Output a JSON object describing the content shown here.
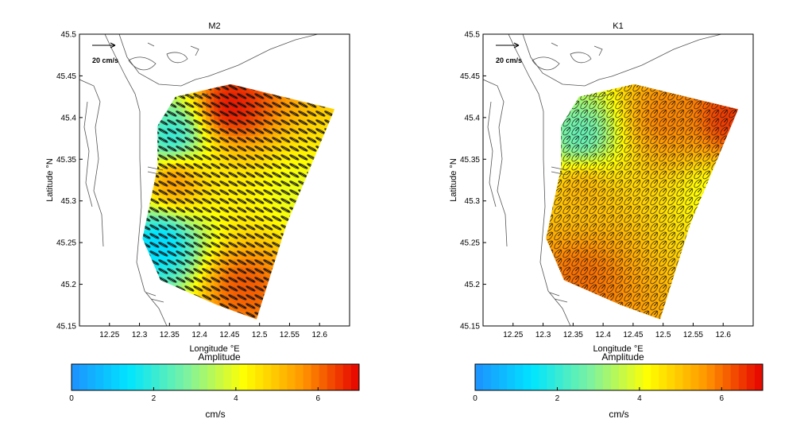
{
  "chart_data": [
    {
      "type": "heatmap",
      "title": "M2",
      "xlabel": "Longitude °E",
      "ylabel": "Latitude °N",
      "xlim": [
        12.2,
        12.65
      ],
      "ylim": [
        45.15,
        45.5
      ],
      "x_ticks": [
        "12.25",
        "12.3",
        "12.35",
        "12.4",
        "12.45",
        "12.5",
        "12.55",
        "12.6"
      ],
      "y_ticks": [
        "45.5",
        "45.45",
        "45.4",
        "45.35",
        "45.3",
        "45.25",
        "45.2",
        "45.15"
      ],
      "reference_vector_label": "20 cm/s",
      "colorbar": {
        "title": "Amplitude",
        "unit": "cm/s",
        "range": [
          0,
          7
        ],
        "ticks": [
          "0",
          "2",
          "4",
          "6"
        ],
        "colormap": [
          "#1e90ff",
          "#00e5ff",
          "#7cf2a0",
          "#ffff00",
          "#ff9900",
          "#e60000"
        ]
      },
      "grid": false,
      "hotspots": [
        {
          "lon": 12.45,
          "lat": 45.415,
          "amplitude": 6.8
        },
        {
          "lon": 12.355,
          "lat": 45.325,
          "amplitude": 5.5
        },
        {
          "lon": 12.47,
          "lat": 45.2,
          "amplitude": 6.2
        },
        {
          "lon": 12.33,
          "lat": 45.25,
          "amplitude": 1.2
        },
        {
          "lon": 12.35,
          "lat": 45.38,
          "amplitude": 2.0
        },
        {
          "lon": 12.56,
          "lat": 45.31,
          "amplitude": 4.0
        }
      ]
    },
    {
      "type": "heatmap",
      "title": "K1",
      "xlabel": "Longitude °E",
      "ylabel": "Latitude °N",
      "xlim": [
        12.2,
        12.65
      ],
      "ylim": [
        45.15,
        45.5
      ],
      "x_ticks": [
        "12.25",
        "12.3",
        "12.35",
        "12.4",
        "12.45",
        "12.5",
        "12.55",
        "12.6"
      ],
      "y_ticks": [
        "45.5",
        "45.45",
        "45.4",
        "45.35",
        "45.3",
        "45.25",
        "45.2",
        "45.15"
      ],
      "reference_vector_label": "20 cm/s",
      "colorbar": {
        "title": "Amplitude",
        "unit": "cm/s",
        "range": [
          0,
          7
        ],
        "ticks": [
          "0",
          "2",
          "4",
          "6"
        ],
        "colormap": [
          "#1e90ff",
          "#00e5ff",
          "#7cf2a0",
          "#ffff00",
          "#ff9900",
          "#e60000"
        ]
      },
      "grid": false,
      "hotspots": [
        {
          "lon": 12.5,
          "lat": 45.4,
          "amplitude": 5.8
        },
        {
          "lon": 12.61,
          "lat": 45.4,
          "amplitude": 6.5
        },
        {
          "lon": 12.36,
          "lat": 45.21,
          "amplitude": 6.0
        },
        {
          "lon": 12.36,
          "lat": 45.315,
          "amplitude": 5.2
        },
        {
          "lon": 12.36,
          "lat": 45.38,
          "amplitude": 2.5
        },
        {
          "lon": 12.57,
          "lat": 45.31,
          "amplitude": 4.2
        }
      ]
    }
  ]
}
